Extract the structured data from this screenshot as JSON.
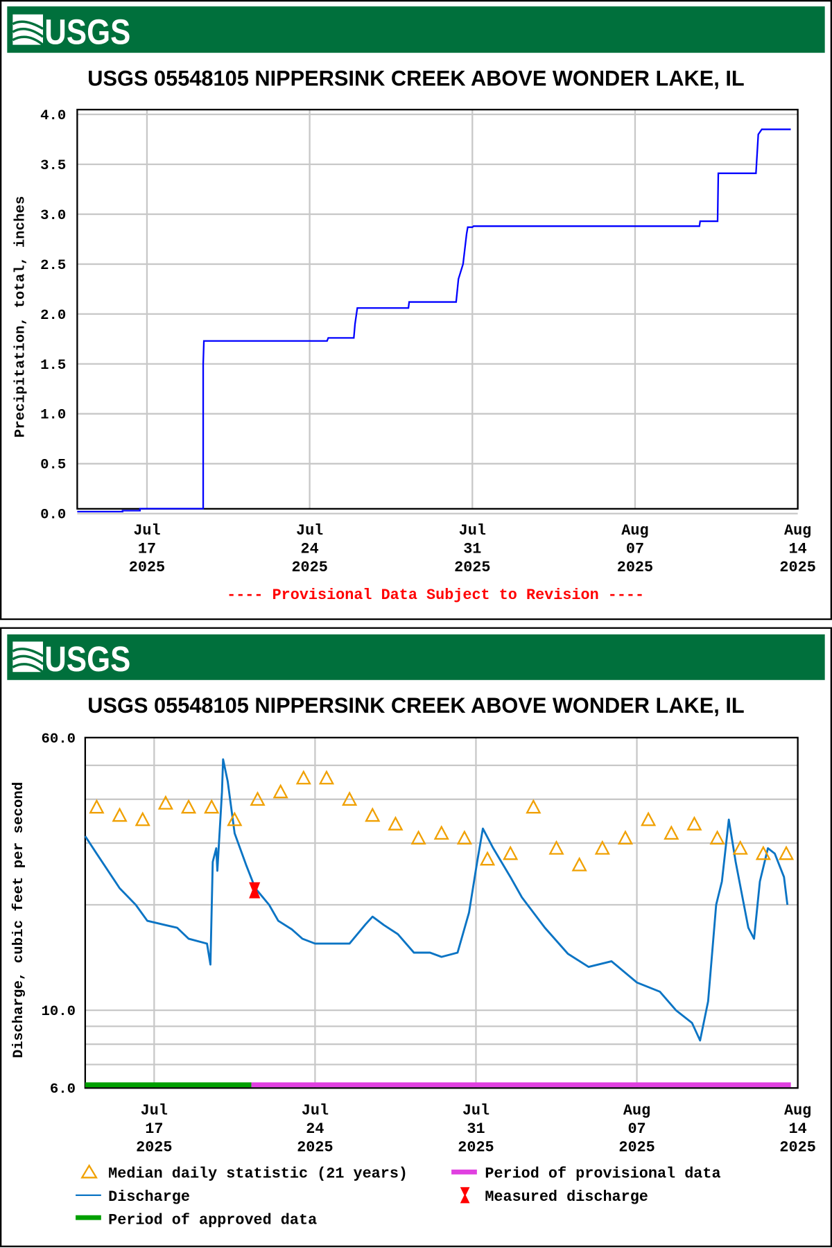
{
  "brand": {
    "logo_text": "USGS",
    "banner_color": "#00703c"
  },
  "provisional_note": "---- Provisional Data Subject to Revision ----",
  "chart_data": [
    {
      "type": "line",
      "title": "USGS 05548105 NIPPERSINK CREEK ABOVE WONDER LAKE, IL",
      "ylabel": "Precipitation, total, inches",
      "x_origin": "2025-07-14",
      "x_unit": "days since 2025-07-14",
      "xlim": [
        0,
        31
      ],
      "ylim": [
        0,
        4
      ],
      "yticks": [
        "0.0",
        "0.5",
        "1.0",
        "1.5",
        "2.0",
        "2.5",
        "3.0",
        "3.5",
        "4.0"
      ],
      "xticks": [
        {
          "day": 3,
          "label": [
            "Jul",
            "17",
            "2025"
          ]
        },
        {
          "day": 10,
          "label": [
            "Jul",
            "24",
            "2025"
          ]
        },
        {
          "day": 17,
          "label": [
            "Jul",
            "31",
            "2025"
          ]
        },
        {
          "day": 24,
          "label": [
            "Aug",
            "07",
            "2025"
          ]
        },
        {
          "day": 31,
          "label": [
            "Aug",
            "14",
            "2025"
          ]
        }
      ],
      "series": [
        {
          "name": "Precipitation",
          "color": "#0000ff",
          "step": true,
          "points": [
            [
              0,
              0.02
            ],
            [
              1.95,
              0.02
            ],
            [
              1.95,
              0.03
            ],
            [
              2.7,
              0.03
            ],
            [
              2.7,
              0.05
            ],
            [
              5.42,
              0.05
            ],
            [
              5.42,
              1.5
            ],
            [
              5.45,
              1.73
            ],
            [
              10.75,
              1.73
            ],
            [
              10.8,
              1.76
            ],
            [
              11.9,
              1.76
            ],
            [
              11.95,
              1.9
            ],
            [
              12.05,
              2.06
            ],
            [
              14.25,
              2.06
            ],
            [
              14.28,
              2.12
            ],
            [
              16.3,
              2.12
            ],
            [
              16.4,
              2.35
            ],
            [
              16.6,
              2.5
            ],
            [
              16.75,
              2.8
            ],
            [
              16.8,
              2.87
            ],
            [
              17.0,
              2.87
            ],
            [
              17.05,
              2.88
            ],
            [
              26.77,
              2.88
            ],
            [
              26.8,
              2.93
            ],
            [
              27.55,
              2.93
            ],
            [
              27.58,
              3.41
            ],
            [
              29.2,
              3.41
            ],
            [
              29.3,
              3.8
            ],
            [
              29.45,
              3.85
            ],
            [
              30.7,
              3.85
            ]
          ]
        }
      ]
    },
    {
      "type": "line",
      "title": "USGS 05548105 NIPPERSINK CREEK ABOVE WONDER LAKE, IL",
      "ylabel": "Discharge, cubic feet per second",
      "yscale": "log",
      "x_origin": "2025-07-14",
      "xlim": [
        0,
        31
      ],
      "ylim": [
        6,
        60
      ],
      "yticks": [
        {
          "v": 60,
          "label": "60.0"
        },
        {
          "v": 10,
          "label": "10.0"
        },
        {
          "v": 6,
          "label": "6.0"
        }
      ],
      "ygrid": [
        50,
        40,
        30,
        20,
        10,
        9,
        8,
        7
      ],
      "xticks": [
        {
          "day": 3,
          "label": [
            "Jul",
            "17",
            "2025"
          ]
        },
        {
          "day": 10,
          "label": [
            "Jul",
            "24",
            "2025"
          ]
        },
        {
          "day": 17,
          "label": [
            "Jul",
            "31",
            "2025"
          ]
        },
        {
          "day": 24,
          "label": [
            "Aug",
            "07",
            "2025"
          ]
        },
        {
          "day": 31,
          "label": [
            "Aug",
            "14",
            "2025"
          ]
        }
      ],
      "discharge": {
        "name": "Discharge",
        "color": "#0b74c4",
        "points": [
          [
            0,
            31.4
          ],
          [
            0.5,
            28
          ],
          [
            1.5,
            22.3
          ],
          [
            2.2,
            20
          ],
          [
            2.7,
            18
          ],
          [
            3.5,
            17.5
          ],
          [
            4.0,
            17.2
          ],
          [
            4.5,
            16
          ],
          [
            5.3,
            15.5
          ],
          [
            5.45,
            13.5
          ],
          [
            5.55,
            26.5
          ],
          [
            5.7,
            29
          ],
          [
            5.75,
            25
          ],
          [
            5.95,
            42
          ],
          [
            6.0,
            52
          ],
          [
            6.2,
            45
          ],
          [
            6.5,
            32
          ],
          [
            7.0,
            26
          ],
          [
            7.4,
            22.3
          ],
          [
            8.0,
            20
          ],
          [
            8.4,
            18
          ],
          [
            9.0,
            17
          ],
          [
            9.45,
            16
          ],
          [
            10.0,
            15.5
          ],
          [
            11.0,
            15.5
          ],
          [
            11.5,
            15.5
          ],
          [
            12.2,
            17.6
          ],
          [
            12.5,
            18.5
          ],
          [
            13.0,
            17.5
          ],
          [
            13.6,
            16.5
          ],
          [
            14.3,
            14.6
          ],
          [
            15.0,
            14.6
          ],
          [
            15.5,
            14.2
          ],
          [
            16.2,
            14.6
          ],
          [
            16.7,
            19
          ],
          [
            17.05,
            26.5
          ],
          [
            17.3,
            33
          ],
          [
            17.75,
            29
          ],
          [
            18.5,
            24
          ],
          [
            19.0,
            21
          ],
          [
            20.0,
            17.2
          ],
          [
            21.0,
            14.5
          ],
          [
            21.9,
            13.3
          ],
          [
            22.9,
            13.8
          ],
          [
            24.0,
            12
          ],
          [
            25.0,
            11.3
          ],
          [
            25.7,
            10
          ],
          [
            26.4,
            9.2
          ],
          [
            26.75,
            8.2
          ],
          [
            27.1,
            10.6
          ],
          [
            27.45,
            20
          ],
          [
            27.7,
            23.3
          ],
          [
            28.0,
            35
          ],
          [
            28.3,
            26.5
          ],
          [
            28.85,
            17.2
          ],
          [
            29.1,
            16
          ],
          [
            29.35,
            23.3
          ],
          [
            29.7,
            29
          ],
          [
            30.0,
            28
          ],
          [
            30.4,
            24
          ],
          [
            30.55,
            20
          ]
        ]
      },
      "median": {
        "name": "Median daily statistic (21 years)",
        "color": "#f0a000",
        "days": [
          0.5,
          1.5,
          2.5,
          3.5,
          4.5,
          5.5,
          6.5,
          7.5,
          8.5,
          9.5,
          10.5,
          11.5,
          12.5,
          13.5,
          14.5,
          15.5,
          16.5,
          17.5,
          18.5,
          19.5,
          20.5,
          21.5,
          22.5,
          23.5,
          24.5,
          25.5,
          26.5,
          27.5,
          28.5,
          29.5,
          30.5
        ],
        "values": [
          38,
          36,
          35,
          39,
          38,
          38,
          35,
          40,
          42,
          46,
          46,
          40,
          36,
          34,
          31,
          32,
          31,
          27,
          28,
          38,
          29,
          26,
          29,
          31,
          35,
          32,
          34,
          31,
          29,
          28,
          28
        ]
      },
      "measured": {
        "name": "Measured discharge",
        "color": "#ff0000",
        "day": 7.37,
        "value": 22
      },
      "periods": [
        {
          "name": "Period of approved data",
          "color": "#00a000",
          "from": 0,
          "to": 7.23
        },
        {
          "name": "Period of provisional data",
          "color": "#e040e0",
          "from": 7.23,
          "to": 30.7
        }
      ]
    }
  ],
  "legend": {
    "median": "Median daily statistic (21 years)",
    "discharge": "Discharge",
    "approved": "Period of approved data",
    "provisional": "Period of provisional data",
    "measured": "Measured discharge"
  }
}
